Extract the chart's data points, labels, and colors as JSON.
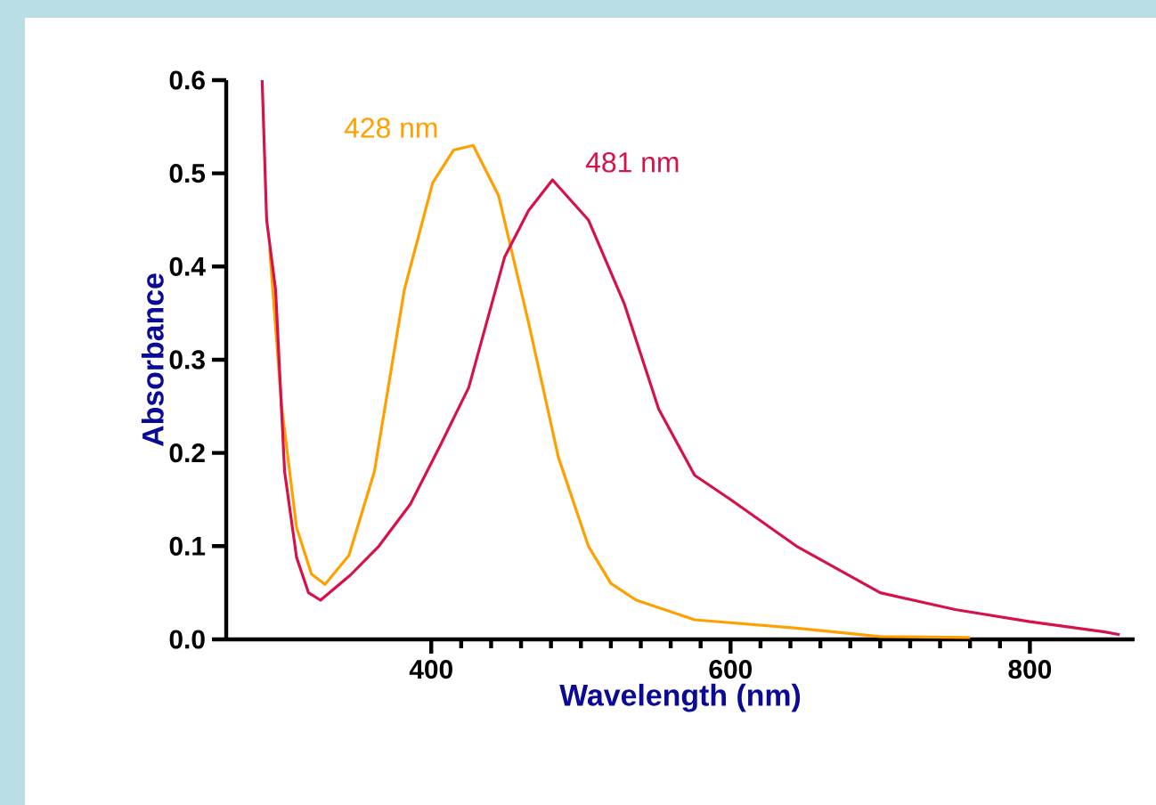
{
  "chart_data": {
    "type": "line",
    "xlabel": "Wavelength (nm)",
    "ylabel": "Absorbance",
    "xlim": [
      263,
      870
    ],
    "ylim": [
      0,
      0.6
    ],
    "xticks": [
      400,
      600,
      800
    ],
    "yticks": [
      {
        "value": 0,
        "label": "0.0"
      },
      {
        "value": 0.1,
        "label": "0.1"
      },
      {
        "value": 0.2,
        "label": "0.2"
      },
      {
        "value": 0.3,
        "label": "0.3"
      },
      {
        "value": 0.4,
        "label": "0.4"
      },
      {
        "value": 0.5,
        "label": "0.5"
      },
      {
        "value": 0.6,
        "label": "0.6"
      }
    ],
    "grid": false,
    "marker": "none",
    "line_style": "solid",
    "series": [
      {
        "color": "#ffa000",
        "x": [
          292,
          300,
          310,
          320,
          329,
          345,
          362,
          382,
          401,
          415,
          428,
          445,
          465,
          485,
          505,
          520,
          537,
          576,
          644,
          700,
          760
        ],
        "values": [
          0.42,
          0.25,
          0.12,
          0.07,
          0.059,
          0.09,
          0.18,
          0.375,
          0.49,
          0.525,
          0.53,
          0.476,
          0.34,
          0.195,
          0.1,
          0.06,
          0.042,
          0.021,
          0.012,
          0.003,
          0.002
        ]
      },
      {
        "color": "#d6124a",
        "x": [
          287,
          290,
          296,
          302,
          310,
          318,
          326,
          346,
          365,
          386,
          406,
          425,
          449,
          465,
          481,
          505,
          529,
          552,
          576,
          600,
          644,
          700,
          750,
          800,
          850,
          860
        ],
        "values": [
          0.6,
          0.45,
          0.375,
          0.18,
          0.088,
          0.05,
          0.042,
          0.069,
          0.1,
          0.145,
          0.208,
          0.27,
          0.41,
          0.46,
          0.493,
          0.45,
          0.36,
          0.247,
          0.176,
          0.15,
          0.1,
          0.05,
          0.032,
          0.019,
          0.008,
          0.005
        ]
      }
    ],
    "annotations": [
      {
        "text": "428 nm",
        "x": 428,
        "y": 0.53
      },
      {
        "text": "481 nm",
        "x": 481,
        "y": 0.493
      }
    ]
  }
}
